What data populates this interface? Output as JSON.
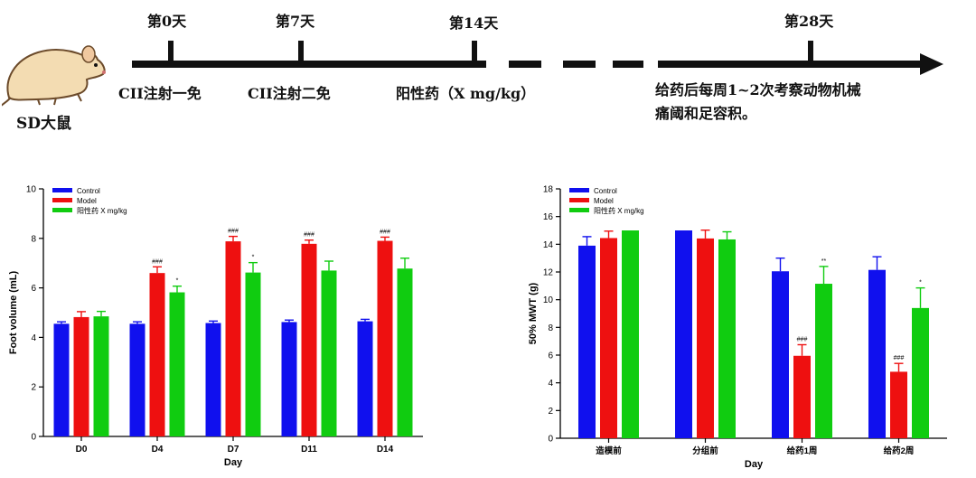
{
  "timeline": {
    "milestones": [
      {
        "label": "第0天"
      },
      {
        "label": "第7天"
      },
      {
        "label": "第14天"
      },
      {
        "label": "第28天"
      }
    ],
    "events": [
      {
        "text": "CII注射一免"
      },
      {
        "text": "CII注射二免"
      },
      {
        "text": "阳性药（X mg/kg）"
      },
      {
        "text": "给药后每周1~2次考察动物机械"
      },
      {
        "text": "痛阈和足容积。"
      }
    ],
    "subject_label": "SD大鼠",
    "line_color": "#111111"
  },
  "chart_data": [
    {
      "type": "bar",
      "title": "",
      "xlabel": "Day",
      "ylabel": "Foot volume (mL)",
      "ylim": [
        0,
        10
      ],
      "yticks": [
        "0",
        "2",
        "4",
        "6",
        "8",
        "10"
      ],
      "categories": [
        "D0",
        "D4",
        "D7",
        "D11",
        "D14"
      ],
      "legend_position": "top-left",
      "grid": false,
      "series": [
        {
          "name": "Control",
          "color": "#1010ee",
          "values": [
            4.55,
            4.55,
            4.58,
            4.62,
            4.65
          ],
          "errors": [
            0.08,
            0.08,
            0.08,
            0.08,
            0.08
          ],
          "marks": [
            "",
            "",
            "",
            "",
            ""
          ]
        },
        {
          "name": "Model",
          "color": "#ee1010",
          "values": [
            4.82,
            6.6,
            7.88,
            7.78,
            7.9
          ],
          "errors": [
            0.22,
            0.25,
            0.2,
            0.15,
            0.15
          ],
          "marks": [
            "",
            "###",
            "###",
            "###",
            "###"
          ]
        },
        {
          "name": "阳性药 X mg/kg",
          "color": "#10cc10",
          "values": [
            4.85,
            5.82,
            6.62,
            6.7,
            6.78
          ],
          "errors": [
            0.2,
            0.25,
            0.4,
            0.38,
            0.42
          ],
          "marks": [
            "",
            "*",
            "*",
            "",
            ""
          ]
        }
      ]
    },
    {
      "type": "bar",
      "title": "",
      "xlabel": "Day",
      "ylabel": "50% MWT (g)",
      "ylim": [
        0,
        18
      ],
      "yticks": [
        "0",
        "2",
        "4",
        "6",
        "8",
        "10",
        "12",
        "14",
        "16",
        "18"
      ],
      "categories": [
        "造模前",
        "分组前",
        "给药1周",
        "给药2周"
      ],
      "legend_position": "top-left",
      "grid": false,
      "series": [
        {
          "name": "Control",
          "color": "#1010ee",
          "values": [
            13.9,
            15.0,
            12.05,
            12.15
          ],
          "errors": [
            0.65,
            0,
            0.95,
            0.95
          ],
          "marks": [
            "",
            "",
            "",
            ""
          ]
        },
        {
          "name": "Model",
          "color": "#ee1010",
          "values": [
            14.45,
            14.42,
            5.95,
            4.8
          ],
          "errors": [
            0.5,
            0.6,
            0.8,
            0.6
          ],
          "marks": [
            "",
            "",
            "###",
            "###"
          ]
        },
        {
          "name": "阳性药 X mg/kg",
          "color": "#10cc10",
          "values": [
            15.0,
            14.35,
            11.15,
            9.4
          ],
          "errors": [
            0,
            0.55,
            1.25,
            1.45
          ],
          "marks": [
            "",
            "",
            "**",
            "*"
          ]
        }
      ]
    }
  ]
}
